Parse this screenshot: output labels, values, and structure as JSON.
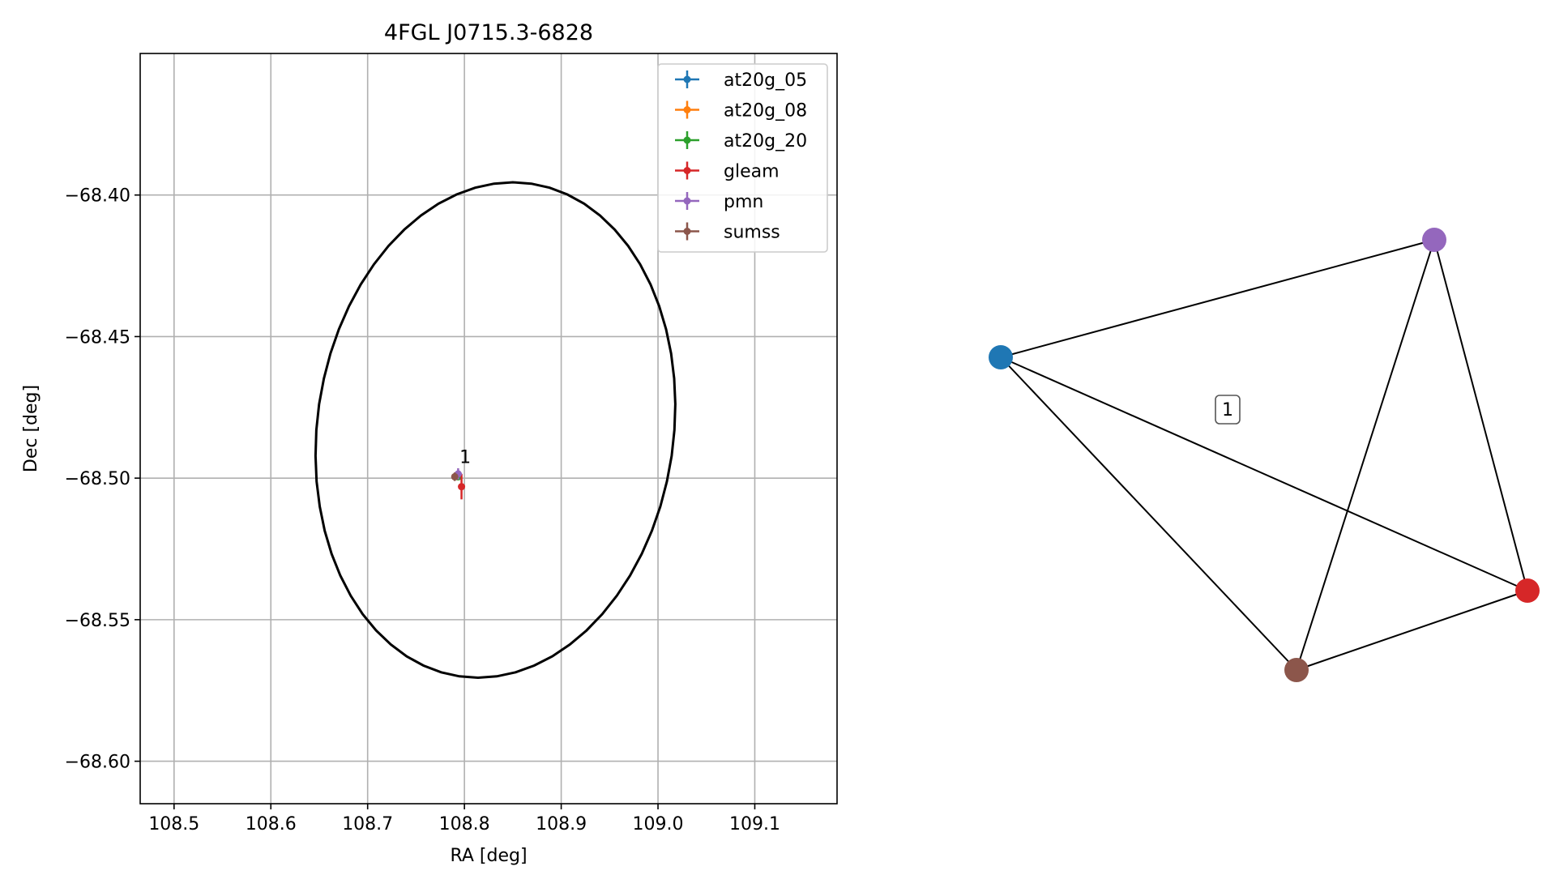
{
  "chart_data": [
    {
      "type": "scatter",
      "title": "4FGL J0715.3-6828",
      "xlabel": "RA [deg]",
      "ylabel": "Dec [deg]",
      "xlim": [
        108.465,
        109.185
      ],
      "ylim": [
        -68.615,
        -68.35
      ],
      "xticks": [
        108.5,
        108.6,
        108.7,
        108.8,
        108.9,
        109.0,
        109.1
      ],
      "xtick_labels": [
        "108.5",
        "108.6",
        "108.7",
        "108.8",
        "108.9",
        "109.0",
        "109.1"
      ],
      "yticks": [
        -68.6,
        -68.55,
        -68.5,
        -68.45,
        -68.4
      ],
      "ytick_labels": [
        "−68.60",
        "−68.55",
        "−68.50",
        "−68.45",
        "−68.40"
      ],
      "grid": true,
      "legend_position": "top-right",
      "ellipse": {
        "center": [
          108.832,
          -68.483
        ],
        "ra_semi_axis": 0.185,
        "dec_semi_axis": 0.0875,
        "ra_skew": 0.018,
        "color": "#000000"
      },
      "series": [
        {
          "name": "at20g_05",
          "color": "#1f77b4",
          "x": 108.7935,
          "y": -68.4995,
          "xerr": 0.0,
          "yerr": 0.0
        },
        {
          "name": "at20g_08",
          "color": "#ff7f0e",
          "x": 108.7935,
          "y": -68.4995,
          "xerr": 0.0,
          "yerr": 0.0
        },
        {
          "name": "at20g_20",
          "color": "#2ca02c",
          "x": 108.7935,
          "y": -68.4995,
          "xerr": 0.0,
          "yerr": 0.0
        },
        {
          "name": "gleam",
          "color": "#d62728",
          "x": 108.797,
          "y": -68.503,
          "xerr": 0.002,
          "yerr": 0.0045
        },
        {
          "name": "pmn",
          "color": "#9467bd",
          "x": 108.7935,
          "y": -68.4985,
          "xerr": 0.004,
          "yerr": 0.002
        },
        {
          "name": "sumss",
          "color": "#8c564b",
          "x": 108.79,
          "y": -68.4995,
          "xerr": 0.002,
          "yerr": 0.0015
        }
      ],
      "annotations": [
        {
          "text": "1",
          "x": 108.8,
          "y": -68.495
        }
      ]
    },
    {
      "type": "network",
      "nodes": [
        {
          "id": "at20g",
          "color": "#1f77b4"
        },
        {
          "id": "pmn",
          "color": "#9467bd"
        },
        {
          "id": "gleam",
          "color": "#d62728"
        },
        {
          "id": "sumss",
          "color": "#8c564b"
        }
      ],
      "edges": [
        [
          "at20g",
          "pmn"
        ],
        [
          "at20g",
          "gleam"
        ],
        [
          "at20g",
          "sumss"
        ],
        [
          "pmn",
          "gleam"
        ],
        [
          "pmn",
          "sumss"
        ],
        [
          "gleam",
          "sumss"
        ]
      ],
      "cluster_label": "1"
    }
  ]
}
